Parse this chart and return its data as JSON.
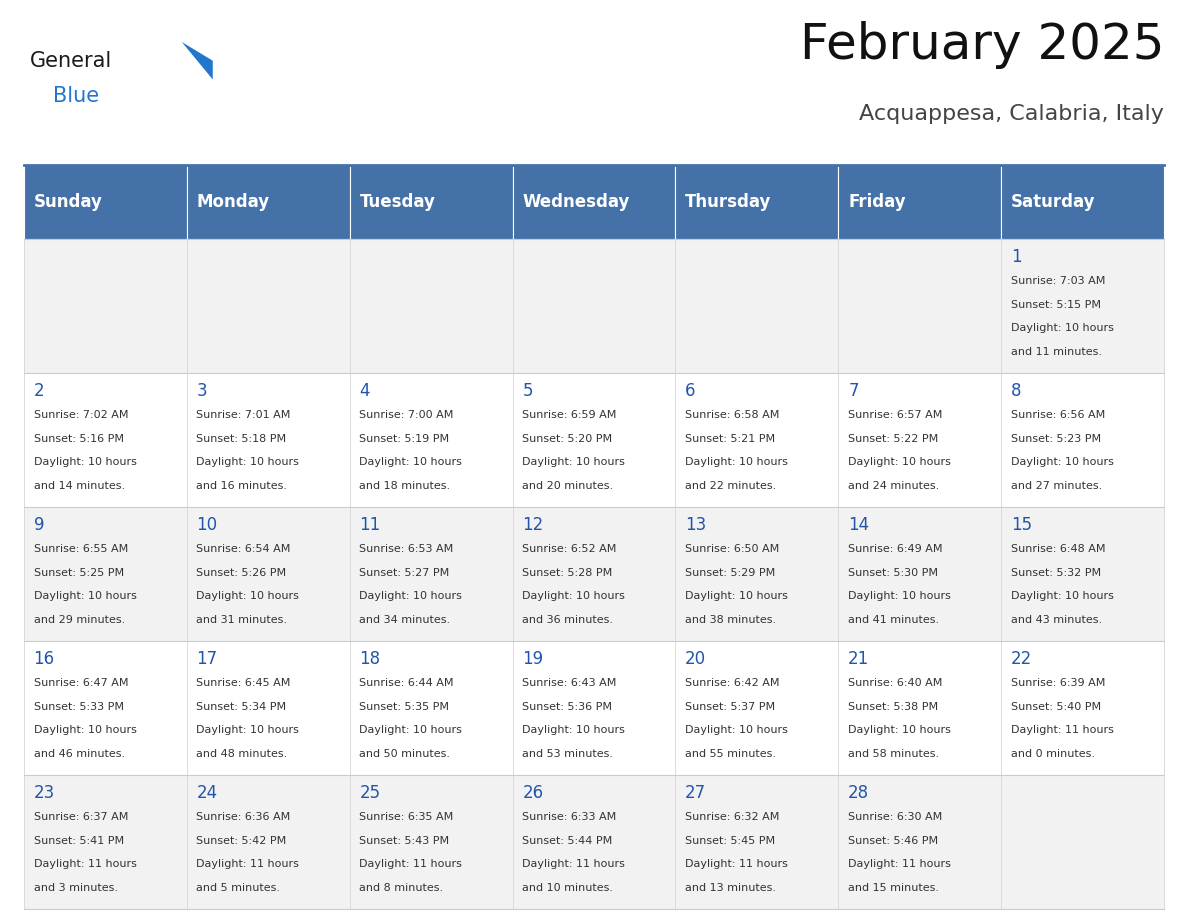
{
  "title": "February 2025",
  "subtitle": "Acquappesa, Calabria, Italy",
  "days_of_week": [
    "Sunday",
    "Monday",
    "Tuesday",
    "Wednesday",
    "Thursday",
    "Friday",
    "Saturday"
  ],
  "header_bg": "#4472a8",
  "header_text": "#ffffff",
  "row_bg_odd": "#f2f2f2",
  "row_bg_even": "#ffffff",
  "cell_border": "#cccccc",
  "day_num_color": "#2255aa",
  "text_color": "#333333",
  "title_color": "#111111",
  "subtitle_color": "#444444",
  "logo_general_color": "#1a1a1a",
  "logo_blue_color": "#2277cc",
  "calendar_data": [
    [
      {
        "day": null,
        "info": null
      },
      {
        "day": null,
        "info": null
      },
      {
        "day": null,
        "info": null
      },
      {
        "day": null,
        "info": null
      },
      {
        "day": null,
        "info": null
      },
      {
        "day": null,
        "info": null
      },
      {
        "day": 1,
        "info": "Sunrise: 7:03 AM\nSunset: 5:15 PM\nDaylight: 10 hours\nand 11 minutes."
      }
    ],
    [
      {
        "day": 2,
        "info": "Sunrise: 7:02 AM\nSunset: 5:16 PM\nDaylight: 10 hours\nand 14 minutes."
      },
      {
        "day": 3,
        "info": "Sunrise: 7:01 AM\nSunset: 5:18 PM\nDaylight: 10 hours\nand 16 minutes."
      },
      {
        "day": 4,
        "info": "Sunrise: 7:00 AM\nSunset: 5:19 PM\nDaylight: 10 hours\nand 18 minutes."
      },
      {
        "day": 5,
        "info": "Sunrise: 6:59 AM\nSunset: 5:20 PM\nDaylight: 10 hours\nand 20 minutes."
      },
      {
        "day": 6,
        "info": "Sunrise: 6:58 AM\nSunset: 5:21 PM\nDaylight: 10 hours\nand 22 minutes."
      },
      {
        "day": 7,
        "info": "Sunrise: 6:57 AM\nSunset: 5:22 PM\nDaylight: 10 hours\nand 24 minutes."
      },
      {
        "day": 8,
        "info": "Sunrise: 6:56 AM\nSunset: 5:23 PM\nDaylight: 10 hours\nand 27 minutes."
      }
    ],
    [
      {
        "day": 9,
        "info": "Sunrise: 6:55 AM\nSunset: 5:25 PM\nDaylight: 10 hours\nand 29 minutes."
      },
      {
        "day": 10,
        "info": "Sunrise: 6:54 AM\nSunset: 5:26 PM\nDaylight: 10 hours\nand 31 minutes."
      },
      {
        "day": 11,
        "info": "Sunrise: 6:53 AM\nSunset: 5:27 PM\nDaylight: 10 hours\nand 34 minutes."
      },
      {
        "day": 12,
        "info": "Sunrise: 6:52 AM\nSunset: 5:28 PM\nDaylight: 10 hours\nand 36 minutes."
      },
      {
        "day": 13,
        "info": "Sunrise: 6:50 AM\nSunset: 5:29 PM\nDaylight: 10 hours\nand 38 minutes."
      },
      {
        "day": 14,
        "info": "Sunrise: 6:49 AM\nSunset: 5:30 PM\nDaylight: 10 hours\nand 41 minutes."
      },
      {
        "day": 15,
        "info": "Sunrise: 6:48 AM\nSunset: 5:32 PM\nDaylight: 10 hours\nand 43 minutes."
      }
    ],
    [
      {
        "day": 16,
        "info": "Sunrise: 6:47 AM\nSunset: 5:33 PM\nDaylight: 10 hours\nand 46 minutes."
      },
      {
        "day": 17,
        "info": "Sunrise: 6:45 AM\nSunset: 5:34 PM\nDaylight: 10 hours\nand 48 minutes."
      },
      {
        "day": 18,
        "info": "Sunrise: 6:44 AM\nSunset: 5:35 PM\nDaylight: 10 hours\nand 50 minutes."
      },
      {
        "day": 19,
        "info": "Sunrise: 6:43 AM\nSunset: 5:36 PM\nDaylight: 10 hours\nand 53 minutes."
      },
      {
        "day": 20,
        "info": "Sunrise: 6:42 AM\nSunset: 5:37 PM\nDaylight: 10 hours\nand 55 minutes."
      },
      {
        "day": 21,
        "info": "Sunrise: 6:40 AM\nSunset: 5:38 PM\nDaylight: 10 hours\nand 58 minutes."
      },
      {
        "day": 22,
        "info": "Sunrise: 6:39 AM\nSunset: 5:40 PM\nDaylight: 11 hours\nand 0 minutes."
      }
    ],
    [
      {
        "day": 23,
        "info": "Sunrise: 6:37 AM\nSunset: 5:41 PM\nDaylight: 11 hours\nand 3 minutes."
      },
      {
        "day": 24,
        "info": "Sunrise: 6:36 AM\nSunset: 5:42 PM\nDaylight: 11 hours\nand 5 minutes."
      },
      {
        "day": 25,
        "info": "Sunrise: 6:35 AM\nSunset: 5:43 PM\nDaylight: 11 hours\nand 8 minutes."
      },
      {
        "day": 26,
        "info": "Sunrise: 6:33 AM\nSunset: 5:44 PM\nDaylight: 11 hours\nand 10 minutes."
      },
      {
        "day": 27,
        "info": "Sunrise: 6:32 AM\nSunset: 5:45 PM\nDaylight: 11 hours\nand 13 minutes."
      },
      {
        "day": 28,
        "info": "Sunrise: 6:30 AM\nSunset: 5:46 PM\nDaylight: 11 hours\nand 15 minutes."
      },
      {
        "day": null,
        "info": null
      }
    ]
  ]
}
